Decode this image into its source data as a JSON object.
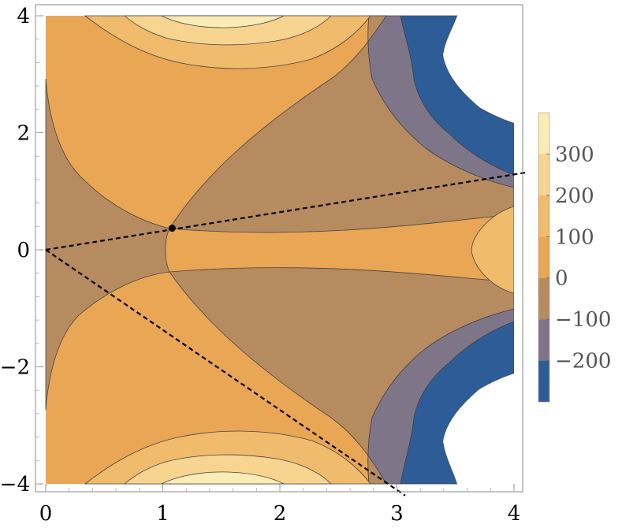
{
  "chart_data": {
    "type": "contour",
    "x_ticks": [
      0,
      1,
      2,
      3,
      4
    ],
    "y_ticks": [
      -4,
      -2,
      0,
      2,
      4
    ],
    "x_tick_labels": [
      "0",
      "1",
      "2",
      "3",
      "4"
    ],
    "y_tick_labels": [
      "−4",
      "−2",
      "0",
      "2",
      "4"
    ],
    "xlim": [
      -0.05,
      4.1
    ],
    "ylim": [
      -4.2,
      4.1
    ],
    "contour_levels": [
      -300,
      -200,
      -100,
      0,
      100,
      200,
      300,
      400
    ],
    "colorbar_labels": [
      "300",
      "200",
      "100",
      "0",
      "−100",
      "−200"
    ],
    "colorbar_values": [
      300,
      200,
      100,
      0,
      -100,
      -200
    ],
    "band_colors": [
      "#2d5c97",
      "#7e7688",
      "#b68b60",
      "#e9a654",
      "#f0bb6d",
      "#f8d491",
      "#fbebb5"
    ],
    "lines": [
      {
        "x": [
          0,
          4.1
        ],
        "y": [
          0,
          1.32
        ],
        "style": "dashed"
      },
      {
        "x": [
          0,
          3.07
        ],
        "y": [
          0,
          -4.2
        ],
        "style": "dashed"
      }
    ],
    "marked_point": {
      "x": 1.08,
      "y": 0.37
    }
  }
}
